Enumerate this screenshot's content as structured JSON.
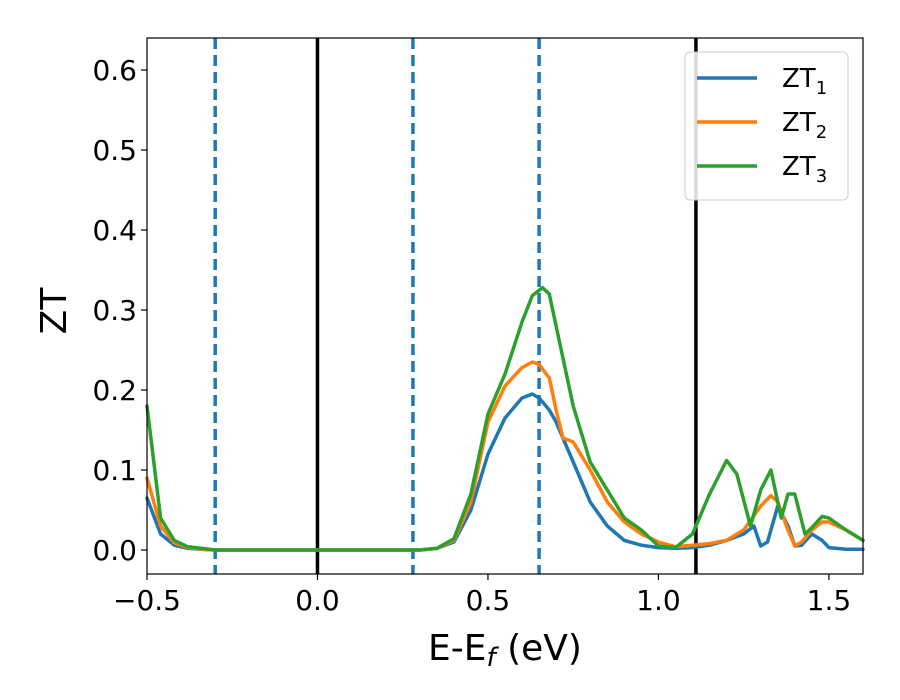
{
  "chart_data": {
    "type": "line",
    "xlabel": "E-E",
    "xlabel_sub": "f",
    "xlabel_unit": " (eV)",
    "ylabel": "ZT",
    "xlim": [
      -0.5,
      1.6
    ],
    "ylim": [
      -0.03,
      0.64
    ],
    "x_ticks": [
      -0.5,
      0.0,
      0.5,
      1.0,
      1.5
    ],
    "x_tick_labels": [
      "−0.5",
      "0.0",
      "0.5",
      "1.0",
      "1.5"
    ],
    "y_ticks": [
      0.0,
      0.1,
      0.2,
      0.3,
      0.4,
      0.5,
      0.6
    ],
    "y_tick_labels": [
      "0.0",
      "0.1",
      "0.2",
      "0.3",
      "0.4",
      "0.5",
      "0.6"
    ],
    "grid": false,
    "legend_position": "top-right",
    "vertical_lines": [
      {
        "x": -0.3,
        "style": "dashed",
        "color": "#1f77b4"
      },
      {
        "x": 0.0,
        "style": "solid",
        "color": "#000000"
      },
      {
        "x": 0.28,
        "style": "dashed",
        "color": "#1f77b4"
      },
      {
        "x": 0.65,
        "style": "dashed",
        "color": "#1f77b4"
      },
      {
        "x": 1.11,
        "style": "solid",
        "color": "#000000"
      }
    ],
    "series": [
      {
        "name": "ZT",
        "sub": "1",
        "color": "#1f77b4",
        "x": [
          -0.5,
          -0.46,
          -0.42,
          -0.38,
          -0.34,
          -0.3,
          -0.2,
          -0.1,
          0.0,
          0.1,
          0.2,
          0.3,
          0.35,
          0.4,
          0.45,
          0.5,
          0.55,
          0.6,
          0.63,
          0.65,
          0.68,
          0.7,
          0.75,
          0.8,
          0.85,
          0.9,
          0.95,
          1.0,
          1.05,
          1.1,
          1.15,
          1.2,
          1.25,
          1.28,
          1.3,
          1.32,
          1.35,
          1.38,
          1.4,
          1.42,
          1.45,
          1.48,
          1.5,
          1.55,
          1.6
        ],
        "values": [
          0.065,
          0.02,
          0.006,
          0.002,
          0.001,
          0.0,
          0.0,
          0.0,
          0.0,
          0.0,
          0.0,
          0.0,
          0.002,
          0.01,
          0.05,
          0.12,
          0.165,
          0.19,
          0.195,
          0.19,
          0.175,
          0.16,
          0.11,
          0.06,
          0.03,
          0.012,
          0.006,
          0.003,
          0.002,
          0.003,
          0.006,
          0.012,
          0.02,
          0.03,
          0.005,
          0.01,
          0.055,
          0.03,
          0.005,
          0.006,
          0.02,
          0.012,
          0.003,
          0.001,
          0.001
        ]
      },
      {
        "name": "ZT",
        "sub": "2",
        "color": "#ff7f0e",
        "x": [
          -0.5,
          -0.46,
          -0.42,
          -0.38,
          -0.34,
          -0.3,
          -0.2,
          -0.1,
          0.0,
          0.1,
          0.2,
          0.3,
          0.35,
          0.4,
          0.45,
          0.5,
          0.55,
          0.6,
          0.63,
          0.65,
          0.68,
          0.7,
          0.72,
          0.75,
          0.8,
          0.85,
          0.9,
          0.95,
          1.0,
          1.05,
          1.1,
          1.15,
          1.2,
          1.25,
          1.3,
          1.33,
          1.35,
          1.38,
          1.4,
          1.42,
          1.45,
          1.48,
          1.5,
          1.55,
          1.6
        ],
        "values": [
          0.09,
          0.03,
          0.009,
          0.003,
          0.001,
          0.0,
          0.0,
          0.0,
          0.0,
          0.0,
          0.0,
          0.0,
          0.002,
          0.012,
          0.06,
          0.16,
          0.205,
          0.228,
          0.235,
          0.232,
          0.215,
          0.175,
          0.14,
          0.135,
          0.1,
          0.06,
          0.035,
          0.02,
          0.01,
          0.004,
          0.006,
          0.008,
          0.012,
          0.025,
          0.055,
          0.068,
          0.06,
          0.025,
          0.005,
          0.01,
          0.025,
          0.035,
          0.035,
          0.025,
          0.012
        ]
      },
      {
        "name": "ZT",
        "sub": "3",
        "color": "#2ca02c",
        "x": [
          -0.5,
          -0.46,
          -0.42,
          -0.38,
          -0.34,
          -0.3,
          -0.2,
          -0.1,
          0.0,
          0.1,
          0.2,
          0.3,
          0.35,
          0.4,
          0.45,
          0.5,
          0.55,
          0.6,
          0.63,
          0.66,
          0.68,
          0.7,
          0.75,
          0.8,
          0.85,
          0.9,
          0.95,
          1.0,
          1.05,
          1.1,
          1.15,
          1.2,
          1.23,
          1.27,
          1.3,
          1.33,
          1.36,
          1.38,
          1.4,
          1.43,
          1.45,
          1.48,
          1.5,
          1.55,
          1.6
        ],
        "values": [
          0.18,
          0.04,
          0.012,
          0.004,
          0.002,
          0.0,
          0.0,
          0.0,
          0.0,
          0.0,
          0.0,
          0.0,
          0.002,
          0.014,
          0.07,
          0.17,
          0.22,
          0.285,
          0.318,
          0.328,
          0.32,
          0.28,
          0.18,
          0.11,
          0.075,
          0.04,
          0.025,
          0.005,
          0.003,
          0.02,
          0.07,
          0.112,
          0.095,
          0.03,
          0.075,
          0.1,
          0.04,
          0.07,
          0.07,
          0.02,
          0.028,
          0.042,
          0.04,
          0.025,
          0.012
        ]
      }
    ]
  }
}
